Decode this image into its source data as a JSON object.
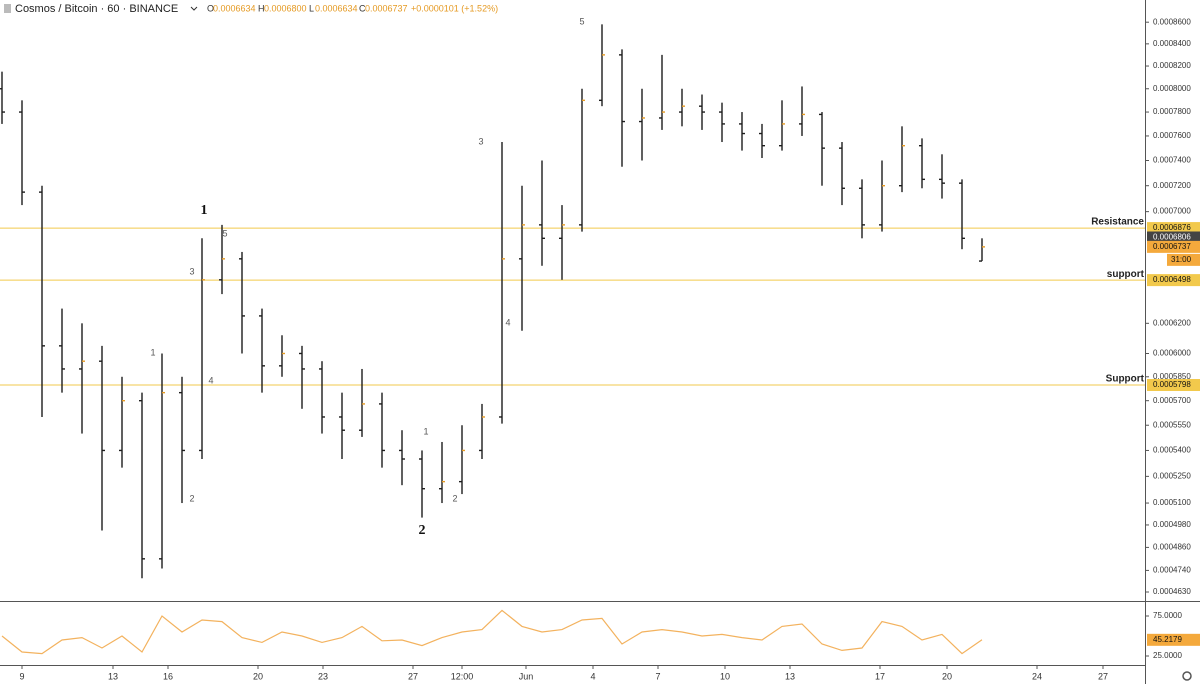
{
  "header": {
    "symbol": "Cosmos / Bitcoin · 60 · BINANCE",
    "ohlc": [
      {
        "key": "O",
        "value": "0.0006634"
      },
      {
        "key": "H",
        "value": "0.0006800"
      },
      {
        "key": "L",
        "value": "0.0006634"
      },
      {
        "key": "C",
        "value": "0.0006737"
      }
    ],
    "change": "+0.0000101 (+1.52%)"
  },
  "chart_data": [
    {
      "type": "ohlc",
      "color": "#1c1c1c",
      "log_scale": true,
      "grid": false,
      "open": [
        0.0008,
        0.00078,
        0.000715,
        0.000605,
        0.00059,
        0.000595,
        0.00054,
        0.00057,
        0.00048,
        0.000575,
        0.00054,
        0.00065,
        0.000665,
        0.000625,
        0.000592,
        0.0006,
        0.00059,
        0.00056,
        0.000552,
        0.000568,
        0.00054,
        0.000535,
        0.000518,
        0.000522,
        0.00054,
        0.00056,
        0.000665,
        0.00069,
        0.00068,
        0.00069,
        0.00079,
        0.00083,
        0.000772,
        0.000775,
        0.00078,
        0.000785,
        0.00078,
        0.00077,
        0.000762,
        0.000752,
        0.00077,
        0.000778,
        0.00075,
        0.000718,
        0.00069,
        0.00072,
        0.000752,
        0.000725,
        0.000722,
        0.0006634
      ],
      "high": [
        0.000815,
        0.00079,
        0.00072,
        0.00063,
        0.00062,
        0.000605,
        0.000585,
        0.000575,
        0.0006,
        0.000585,
        0.00068,
        0.00069,
        0.00067,
        0.00063,
        0.000612,
        0.000605,
        0.000595,
        0.000575,
        0.00059,
        0.000575,
        0.000552,
        0.00054,
        0.000545,
        0.000555,
        0.000568,
        0.000755,
        0.00072,
        0.00074,
        0.000705,
        0.0008,
        0.000858,
        0.000835,
        0.0008,
        0.00083,
        0.0008,
        0.000795,
        0.000788,
        0.00078,
        0.00077,
        0.00079,
        0.000802,
        0.00078,
        0.000755,
        0.000725,
        0.00074,
        0.000768,
        0.000758,
        0.000745,
        0.000725,
        0.00068
      ],
      "low": [
        0.00077,
        0.000705,
        0.00056,
        0.000575,
        0.00055,
        0.000495,
        0.00053,
        0.00047,
        0.000475,
        0.00051,
        0.000535,
        0.00064,
        0.0006,
        0.000575,
        0.000585,
        0.000565,
        0.00055,
        0.000535,
        0.000548,
        0.00053,
        0.00052,
        0.000502,
        0.00051,
        0.000515,
        0.000535,
        0.000556,
        0.000615,
        0.00066,
        0.00065,
        0.000685,
        0.000785,
        0.000735,
        0.00074,
        0.000765,
        0.000768,
        0.000765,
        0.000755,
        0.000748,
        0.000742,
        0.000748,
        0.00076,
        0.00072,
        0.000705,
        0.00068,
        0.000685,
        0.000715,
        0.000718,
        0.00071,
        0.000672,
        0.0006634
      ],
      "close": [
        0.00078,
        0.000715,
        0.000605,
        0.00059,
        0.000595,
        0.00054,
        0.00057,
        0.00048,
        0.000575,
        0.00054,
        0.00065,
        0.000665,
        0.000625,
        0.000592,
        0.0006,
        0.00059,
        0.00056,
        0.000552,
        0.000568,
        0.00054,
        0.000535,
        0.000518,
        0.000522,
        0.00054,
        0.00056,
        0.000665,
        0.00069,
        0.00068,
        0.00069,
        0.00079,
        0.00083,
        0.000772,
        0.000775,
        0.00078,
        0.000785,
        0.00078,
        0.00077,
        0.000762,
        0.000752,
        0.00077,
        0.000778,
        0.00075,
        0.000718,
        0.00069,
        0.00072,
        0.000752,
        0.000725,
        0.000722,
        0.00068,
        0.0006737
      ],
      "ylim": [
        0.000459,
        0.000881
      ],
      "yticks": [
        {
          "value": 0.00086,
          "label": "0.0008600"
        },
        {
          "value": 0.00084,
          "label": "0.0008400"
        },
        {
          "value": 0.00082,
          "label": "0.0008200"
        },
        {
          "value": 0.0008,
          "label": "0.0008000"
        },
        {
          "value": 0.00078,
          "label": "0.0007800"
        },
        {
          "value": 0.00076,
          "label": "0.0007600"
        },
        {
          "value": 0.00074,
          "label": "0.0007400"
        },
        {
          "value": 0.00072,
          "label": "0.0007200"
        },
        {
          "value": 0.0007,
          "label": "0.0007000"
        },
        {
          "value": 0.00062,
          "label": "0.0006200"
        },
        {
          "value": 0.0006,
          "label": "0.0006000"
        },
        {
          "value": 0.000585,
          "label": "0.0005850"
        },
        {
          "value": 0.00057,
          "label": "0.0005700"
        },
        {
          "value": 0.000555,
          "label": "0.0005550"
        },
        {
          "value": 0.00054,
          "label": "0.0005400"
        },
        {
          "value": 0.000525,
          "label": "0.0005250"
        },
        {
          "value": 0.00051,
          "label": "0.0005100"
        },
        {
          "value": 0.000498,
          "label": "0.0004980"
        },
        {
          "value": 0.000486,
          "label": "0.0004860"
        },
        {
          "value": 0.000474,
          "label": "0.0004740"
        },
        {
          "value": 0.000463,
          "label": "0.0004630"
        }
      ],
      "xlim": [
        -0.1,
        57.15
      ],
      "xticks": [
        {
          "value": 1.0,
          "label": "9"
        },
        {
          "value": 5.55,
          "label": "13"
        },
        {
          "value": 8.3,
          "label": "16"
        },
        {
          "value": 12.8,
          "label": "20"
        },
        {
          "value": 16.05,
          "label": "23"
        },
        {
          "value": 20.55,
          "label": "27"
        },
        {
          "value": 23.0,
          "label": "12:00"
        },
        {
          "value": 26.2,
          "label": "Jun"
        },
        {
          "value": 29.55,
          "label": "4"
        },
        {
          "value": 32.8,
          "label": "7"
        },
        {
          "value": 36.15,
          "label": "10"
        },
        {
          "value": 39.4,
          "label": "13"
        },
        {
          "value": 43.9,
          "label": "17"
        },
        {
          "value": 47.25,
          "label": "20"
        },
        {
          "value": 51.75,
          "label": "24"
        },
        {
          "value": 55.05,
          "label": "27"
        }
      ],
      "level_color": "#f2c94c",
      "levels": [
        {
          "name": "Resistance",
          "value": 0.0006876
        },
        {
          "name": "support",
          "value": 0.0006498
        },
        {
          "name": "Support",
          "value": 0.0005798
        }
      ],
      "marker_price": 0.0006806,
      "last_price": 0.0006737,
      "countdown": "31:00",
      "annotations": [
        "1",
        "5",
        "3",
        "4",
        "1",
        "2",
        "2",
        "1",
        "2",
        "5",
        "3",
        "4"
      ]
    },
    {
      "type": "line",
      "color": "#f3b25e",
      "values": [
        50,
        30,
        28,
        45,
        48,
        35,
        50,
        30,
        75,
        55,
        70,
        68,
        48,
        42,
        55,
        50,
        42,
        48,
        62,
        44,
        45,
        38,
        48,
        55,
        58,
        82,
        62,
        55,
        58,
        70,
        72,
        40,
        55,
        58,
        55,
        50,
        52,
        48,
        45,
        62,
        65,
        40,
        32,
        35,
        68,
        62,
        45,
        52,
        28,
        45.2179
      ],
      "ylim": [
        17.5,
        91.25
      ],
      "yticks": [
        {
          "value": 75,
          "label": "75.0000"
        },
        {
          "value": 25,
          "label": "25.0000"
        }
      ]
    }
  ]
}
